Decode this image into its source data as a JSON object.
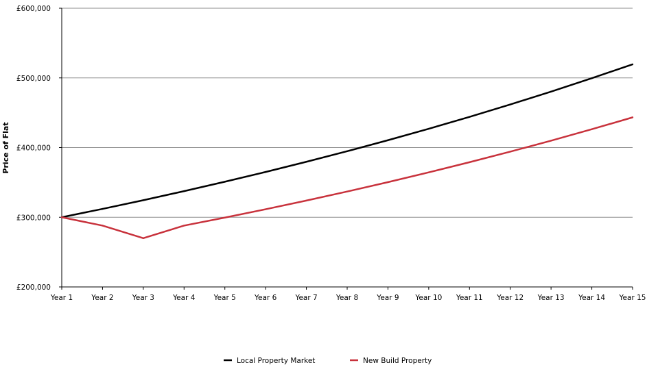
{
  "chart_data": {
    "type": "line",
    "title": "",
    "xlabel": "",
    "ylabel": "Price of Flat",
    "categories": [
      "Year 1",
      "Year 2",
      "Year 3",
      "Year 4",
      "Year 5",
      "Year 6",
      "Year 7",
      "Year 8",
      "Year 9",
      "Year 10",
      "Year 11",
      "Year 12",
      "Year 13",
      "Year 14",
      "Year 15"
    ],
    "ylim": [
      200000,
      600000
    ],
    "yticks": [
      200000,
      300000,
      400000,
      500000,
      600000
    ],
    "ytick_labels": [
      "£200,000",
      "£300,000",
      "£400,000",
      "£500,000",
      "£600,000"
    ],
    "grid": "horizontal",
    "legend_position": "bottom-center",
    "series": [
      {
        "name": "Local Property Market",
        "color": "#000000",
        "values": [
          300000,
          312000,
          324480,
          337459,
          350958,
          364996,
          379596,
          394780,
          410571,
          426994,
          444074,
          461837,
          480310,
          499523,
          519504
        ]
      },
      {
        "name": "New Build Property",
        "color": "#c8323c",
        "values": [
          300000,
          288000,
          270000,
          288000,
          299520,
          311501,
          323961,
          336919,
          350396,
          364412,
          378988,
          394148,
          409914,
          426310,
          443363
        ]
      }
    ]
  }
}
